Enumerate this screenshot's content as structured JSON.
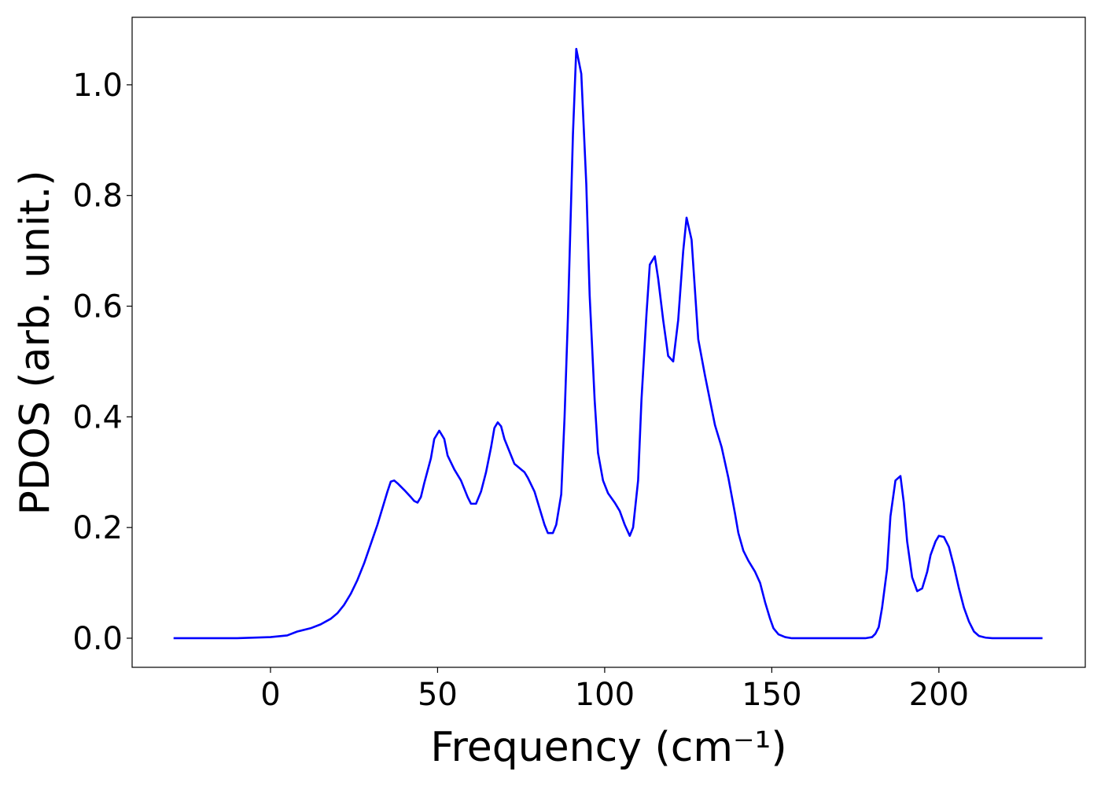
{
  "chart_data": {
    "type": "line",
    "xlabel": "Frequency (cm⁻¹)",
    "ylabel": "PDOS (arb. unit.)",
    "color": "#0000ff",
    "xlim": [
      -41.4,
      243.8
    ],
    "ylim": [
      -0.0526,
      1.122
    ],
    "xticks": [
      0,
      50,
      100,
      150,
      200
    ],
    "yticks": [
      {
        "value": 0,
        "label": "0.0"
      },
      0.2,
      0.4,
      0.6,
      0.8,
      {
        "value": 1,
        "label": "1.0"
      }
    ],
    "grid": false,
    "x": [
      -29,
      -10,
      0,
      5,
      8,
      12,
      15,
      18,
      20,
      22,
      24,
      26,
      28,
      30,
      32,
      34,
      35,
      36,
      37,
      38,
      40,
      42,
      43,
      44,
      45,
      46,
      48,
      49,
      50.5,
      52,
      53,
      55,
      57,
      59,
      60,
      61.5,
      63,
      64.5,
      66,
      67,
      68,
      69,
      70,
      72,
      73,
      75,
      76,
      77,
      79,
      80.5,
      82,
      83,
      84.5,
      85.5,
      87,
      88,
      89,
      90.5,
      91.5,
      93,
      94.5,
      95.5,
      97,
      98,
      99.5,
      101,
      103,
      104.5,
      106,
      107.5,
      108.5,
      110,
      111,
      112.5,
      113.5,
      115,
      116,
      117.5,
      119,
      120.5,
      122,
      123.5,
      124.5,
      126,
      128,
      130,
      131.5,
      133,
      135,
      137,
      139,
      140,
      141.5,
      143,
      145,
      146.5,
      148,
      149.5,
      150.5,
      152,
      154,
      156,
      178,
      180,
      181,
      182,
      183,
      184.5,
      185.5,
      187,
      188.5,
      189.5,
      190.5,
      192,
      193.5,
      195,
      196.5,
      197.5,
      199,
      200,
      201.5,
      203,
      204.5,
      206,
      207.5,
      209,
      210.5,
      212,
      214,
      216,
      231
    ],
    "values": [
      0,
      0,
      0.002,
      0.005,
      0.012,
      0.018,
      0.025,
      0.035,
      0.045,
      0.06,
      0.08,
      0.105,
      0.135,
      0.17,
      0.205,
      0.245,
      0.265,
      0.283,
      0.285,
      0.28,
      0.268,
      0.255,
      0.248,
      0.245,
      0.255,
      0.28,
      0.325,
      0.36,
      0.375,
      0.36,
      0.33,
      0.305,
      0.285,
      0.255,
      0.243,
      0.243,
      0.265,
      0.3,
      0.345,
      0.38,
      0.39,
      0.383,
      0.36,
      0.33,
      0.315,
      0.305,
      0.3,
      0.29,
      0.265,
      0.235,
      0.205,
      0.19,
      0.19,
      0.205,
      0.26,
      0.4,
      0.58,
      0.91,
      1.065,
      1.02,
      0.82,
      0.62,
      0.43,
      0.335,
      0.285,
      0.262,
      0.245,
      0.23,
      0.205,
      0.185,
      0.2,
      0.285,
      0.43,
      0.585,
      0.675,
      0.69,
      0.65,
      0.575,
      0.51,
      0.5,
      0.575,
      0.7,
      0.76,
      0.72,
      0.54,
      0.475,
      0.43,
      0.385,
      0.345,
      0.29,
      0.225,
      0.19,
      0.158,
      0.14,
      0.12,
      0.1,
      0.065,
      0.035,
      0.018,
      0.007,
      0.002,
      0,
      0,
      0.002,
      0.008,
      0.02,
      0.055,
      0.125,
      0.22,
      0.285,
      0.293,
      0.245,
      0.175,
      0.11,
      0.085,
      0.09,
      0.12,
      0.15,
      0.175,
      0.185,
      0.183,
      0.165,
      0.13,
      0.09,
      0.055,
      0.03,
      0.012,
      0.004,
      0.001,
      0,
      0
    ]
  }
}
